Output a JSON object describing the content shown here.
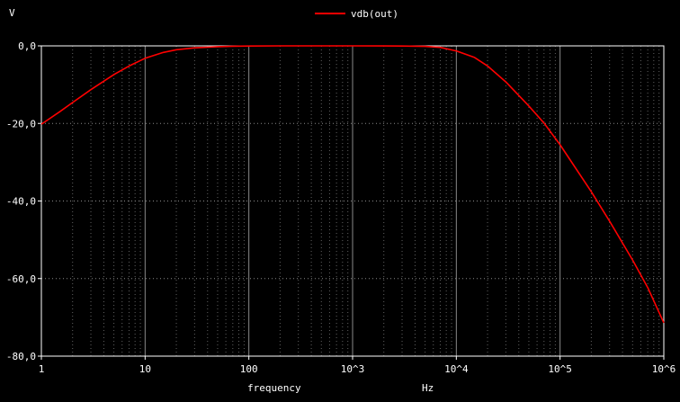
{
  "chart_data": {
    "type": "line",
    "title": "",
    "ylabel": "V",
    "xlabel": "frequency",
    "xunit": "Hz",
    "xscale": "log",
    "xlim": [
      1,
      1000000
    ],
    "ylim": [
      -80,
      0
    ],
    "grid": true,
    "legend": "top-center",
    "background": "#000000",
    "axis_color": "#ffffff",
    "grid_color": "#8a8a8a",
    "x_ticks": [
      {
        "value": 1,
        "label": "1"
      },
      {
        "value": 10,
        "label": "10"
      },
      {
        "value": 100,
        "label": "100"
      },
      {
        "value": 1000,
        "label": "10^3"
      },
      {
        "value": 10000,
        "label": "10^4"
      },
      {
        "value": 100000,
        "label": "10^5"
      },
      {
        "value": 1000000,
        "label": "10^6"
      }
    ],
    "y_ticks": [
      {
        "value": 0,
        "label": "0,0"
      },
      {
        "value": -20,
        "label": "-20,0"
      },
      {
        "value": -40,
        "label": "-40,0"
      },
      {
        "value": -60,
        "label": "-60,0"
      },
      {
        "value": -80,
        "label": "-80,0"
      }
    ],
    "series": [
      {
        "name": "vdb(out)",
        "color": "#ff0000",
        "x": [
          1,
          1.5,
          2,
          3,
          5,
          7,
          10,
          15,
          20,
          30,
          50,
          70,
          100,
          200,
          500,
          1000,
          2000,
          3000,
          5000,
          7000,
          10000,
          15000,
          20000,
          30000,
          50000,
          70000,
          100000,
          200000,
          300000,
          500000,
          700000,
          1000000
        ],
        "y": [
          -20.2,
          -17.0,
          -14.6,
          -11.3,
          -7.4,
          -5.2,
          -3.2,
          -1.7,
          -1.0,
          -0.5,
          -0.2,
          -0.1,
          -0.05,
          -0.01,
          0.0,
          0.0,
          -0.02,
          -0.05,
          -0.15,
          -0.4,
          -1.3,
          -3.0,
          -5.2,
          -9.3,
          -15.5,
          -19.9,
          -25.5,
          -37.6,
          -45.2,
          -55.2,
          -62.3,
          -71.4
        ]
      }
    ]
  }
}
